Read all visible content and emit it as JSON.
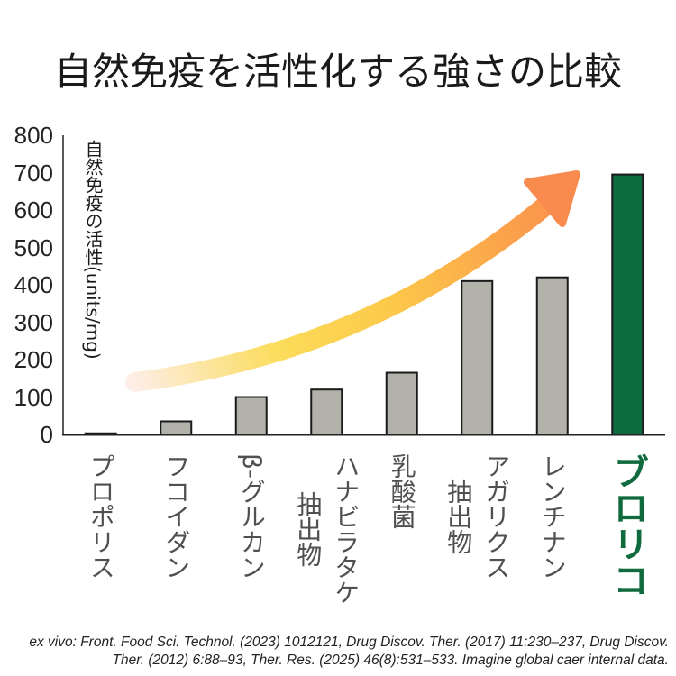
{
  "chart_data": {
    "type": "bar",
    "title": "自然免疫を活性化する強さの比較",
    "ylabel": "自然免疫の活性(units/mg)",
    "categories": [
      "プロポリス",
      "フコイダン",
      "β-グルカン",
      "ハナビラタケ\n抽出物",
      "乳酸菌",
      "アガリクス\n抽出物",
      "レンチナン",
      "ブロリコ"
    ],
    "values": [
      3,
      35,
      100,
      120,
      165,
      410,
      420,
      695
    ],
    "ylim": [
      0,
      800
    ],
    "yticks": [
      0,
      100,
      200,
      300,
      400,
      500,
      600,
      700,
      800
    ],
    "grid": false
  },
  "source_note": [
    "ex vivo: Front. Food Sci. Technol. (2023) 1012121, Drug Discov. Ther. (2017) 11:230–237, Drug Discov.",
    "Ther. (2012) 6:88–93, Ther. Res. (2025) 46(8):531–533. Imagine global caer internal data."
  ],
  "colors": {
    "bar_fill": "#b3b2aa",
    "bar_highlight_fill": "#0e6b3e",
    "bar_stroke": "#1a1a1a",
    "axis": "#222222",
    "arrow_gradient": [
      "#fdeee8",
      "#fcdc5a",
      "#fcc84a",
      "#fba54b",
      "#f98b4e"
    ],
    "arrow_head": "#f98b4e"
  }
}
